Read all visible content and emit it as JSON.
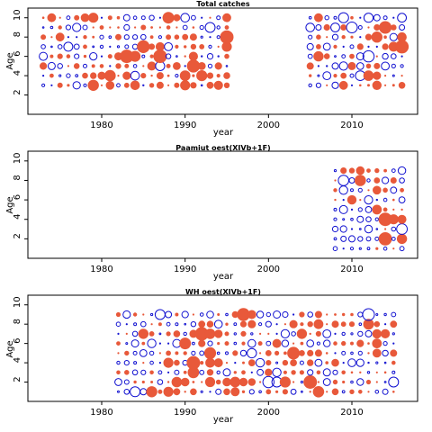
{
  "colors": {
    "positive": "#e8593a",
    "negative": "#1010d0",
    "frame": "#000000"
  },
  "chart_data": [
    {
      "type": "scatter",
      "title": "Total catches",
      "xlabel": "year",
      "ylabel": "Age",
      "xlim": [
        1971,
        2008
      ],
      "ylim": [
        0,
        11
      ],
      "xticks": [
        1980,
        1990,
        2000,
        2010
      ],
      "yticks": [
        2,
        4,
        6,
        8,
        10
      ],
      "grid": false,
      "legend": "none",
      "marker": "bubble",
      "blocks": [
        {
          "x0": 1973,
          "x1": 1995,
          "y0": 3,
          "y1": 10,
          "seed": 11
        },
        {
          "x0": 2005,
          "x1": 2016,
          "y0": 3,
          "y1": 10,
          "seed": 23
        }
      ]
    },
    {
      "type": "scatter",
      "title": "Paamiut   oest(XIVb+1F)",
      "xlabel": "year",
      "ylabel": "Age",
      "xlim": [
        1971,
        2008
      ],
      "ylim": [
        0,
        11
      ],
      "xticks": [
        1980,
        1990,
        2000,
        2010
      ],
      "yticks": [
        2,
        4,
        6,
        8,
        10
      ],
      "grid": false,
      "legend": "none",
      "marker": "bubble",
      "blocks": [
        {
          "x0": 2008,
          "x1": 2016,
          "y0": 1,
          "y1": 9,
          "seed": 37
        }
      ]
    },
    {
      "type": "scatter",
      "title": "WH   oest(XIVb+1F)",
      "xlabel": "year",
      "ylabel": "Age",
      "xlim": [
        1971,
        2008
      ],
      "ylim": [
        0,
        11
      ],
      "xticks": [
        1980,
        1990,
        2000,
        2010
      ],
      "yticks": [
        2,
        4,
        6,
        8,
        10
      ],
      "grid": false,
      "legend": "none",
      "marker": "bubble",
      "blocks": [
        {
          "x0": 1982,
          "x1": 2015,
          "y0": 1,
          "y1": 9,
          "seed": 53
        }
      ]
    }
  ]
}
